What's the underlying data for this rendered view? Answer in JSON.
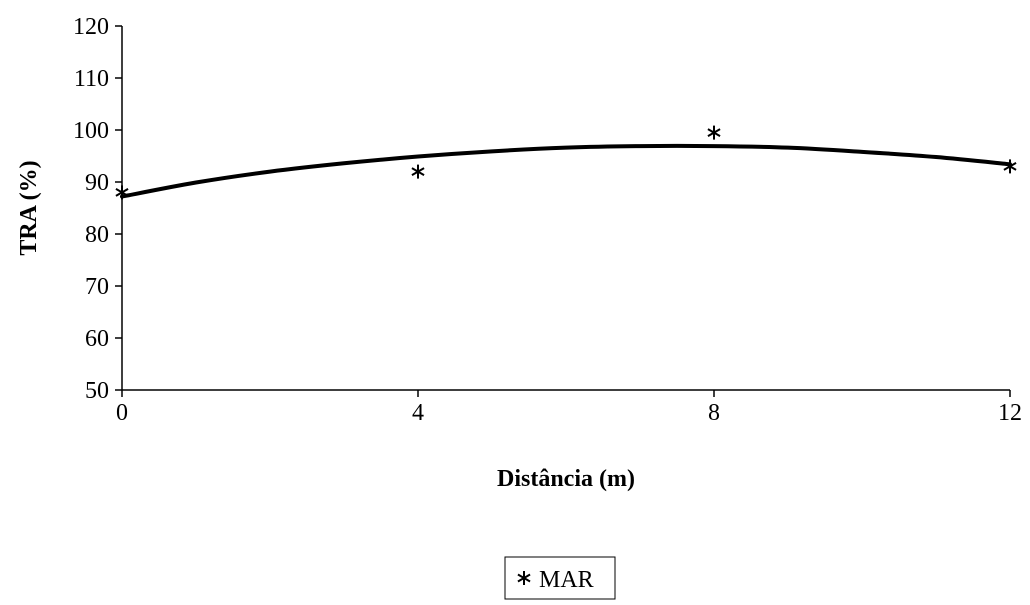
{
  "chart_data": {
    "type": "scatter",
    "title": "",
    "xlabel": "Distância (m)",
    "ylabel": "TRA (%)",
    "xlim": [
      0,
      12
    ],
    "ylim": [
      50,
      120
    ],
    "x_ticks": [
      0,
      4,
      8,
      12
    ],
    "y_ticks": [
      50,
      60,
      70,
      80,
      90,
      100,
      110,
      120
    ],
    "grid": false,
    "legend_position": "bottom-center",
    "series": [
      {
        "name": "MAR",
        "marker": "asterisk",
        "x": [
          0,
          4,
          8,
          12
        ],
        "y": [
          88,
          92,
          99.5,
          93
        ]
      }
    ],
    "trendline": {
      "kind": "polynomial-2",
      "x": [
        0,
        1,
        2,
        3,
        4,
        5,
        6,
        7,
        8,
        9,
        10,
        11,
        12
      ],
      "y": [
        87.2,
        89.9,
        92,
        93.6,
        94.9,
        95.9,
        96.6,
        96.9,
        96.9,
        96.6,
        95.8,
        94.8,
        93.4
      ]
    },
    "colors": {
      "series": "#000000",
      "axis": "#000000"
    }
  }
}
